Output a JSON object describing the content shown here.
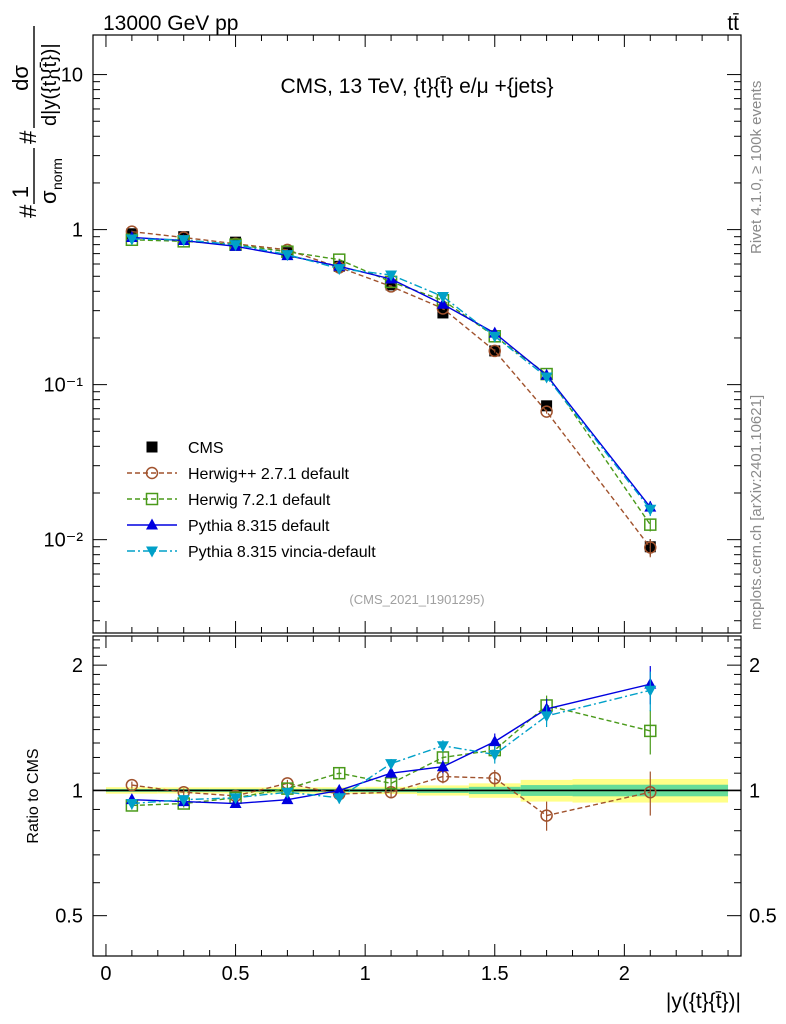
{
  "header": {
    "left": "13000 GeV pp",
    "right": "tt̄"
  },
  "side_labels": {
    "rivet": "Rivet 4.1.0, ≥ 100k events",
    "mcplots": "mcplots.cern.ch [arXiv:2401.10621]"
  },
  "colors": {
    "cms": "#000000",
    "herwig271": "#a0522d",
    "herwig721": "#4a9a1a",
    "pythia": "#0000e0",
    "vincia": "#00a0c8",
    "band_yellow": "#ffff88",
    "band_green": "#66dd99"
  },
  "chart_data": [
    {
      "type": "scatter",
      "panel": "main",
      "title": "CMS, 13 TeV, {t}{t̄} e/μ +{jets}",
      "ylabel": "#1/σ_norm #dσ/d|y({t}{t̄})|",
      "ylabel_parts": {
        "hash1": "#",
        "one": "1",
        "sigma": "σ",
        "norm": "norm",
        "hash2": "#",
        "num": "dσ",
        "den": "d|y({t}{t̄})|"
      },
      "yscale": "log",
      "ylim": [
        0.0025,
        18
      ],
      "xlim": [
        -0.05,
        2.45
      ],
      "y_ticklabels": [
        {
          "value": 10,
          "label": "10"
        },
        {
          "value": 1,
          "label": "1"
        },
        {
          "value": 0.1,
          "label": "10⁻¹"
        },
        {
          "value": 0.01,
          "label": "10⁻²"
        }
      ],
      "watermark": "(CMS_2021_I1901295)",
      "legend_position": "lower-left",
      "x": [
        0.1,
        0.3,
        0.5,
        0.7,
        0.9,
        1.1,
        1.3,
        1.5,
        1.7,
        2.1
      ],
      "series": [
        {
          "name": "CMS",
          "key": "cms",
          "marker": "square-filled",
          "line": "none",
          "values": [
            0.94,
            0.9,
            0.83,
            0.71,
            0.58,
            0.44,
            0.29,
            0.165,
            0.073,
            0.009
          ],
          "errors": [
            0.03,
            0.03,
            0.025,
            0.02,
            0.02,
            0.015,
            0.015,
            0.008,
            0.004,
            0.0011
          ]
        },
        {
          "name": "Herwig++ 2.7.1 default",
          "key": "herwig271",
          "marker": "circle-open",
          "line": "dashed",
          "values": [
            0.97,
            0.89,
            0.81,
            0.74,
            0.57,
            0.43,
            0.31,
            0.165,
            0.067,
            0.0089
          ],
          "errors": [
            0.015,
            0.013,
            0.012,
            0.011,
            0.009,
            0.008,
            0.006,
            0.004,
            0.002,
            0.0012
          ]
        },
        {
          "name": "Herwig 7.2.1 default",
          "key": "herwig721",
          "marker": "square-open",
          "line": "dashed",
          "values": [
            0.86,
            0.84,
            0.8,
            0.72,
            0.64,
            0.46,
            0.35,
            0.205,
            0.117,
            0.0125
          ],
          "errors": [
            0.013,
            0.012,
            0.011,
            0.01,
            0.009,
            0.008,
            0.006,
            0.004,
            0.003,
            0.0012
          ]
        },
        {
          "name": "Pythia 8.315 default",
          "key": "pythia",
          "marker": "triangle-up",
          "line": "solid",
          "values": [
            0.89,
            0.85,
            0.78,
            0.68,
            0.58,
            0.48,
            0.33,
            0.215,
            0.115,
            0.0162
          ],
          "errors": [
            0.013,
            0.012,
            0.011,
            0.01,
            0.009,
            0.008,
            0.006,
            0.004,
            0.003,
            0.0015
          ]
        },
        {
          "name": "Pythia 8.315 vincia-default",
          "key": "vincia",
          "marker": "triangle-down",
          "line": "dashdot",
          "values": [
            0.87,
            0.86,
            0.8,
            0.69,
            0.56,
            0.51,
            0.37,
            0.205,
            0.112,
            0.0157
          ],
          "errors": [
            0.013,
            0.012,
            0.011,
            0.01,
            0.009,
            0.008,
            0.006,
            0.004,
            0.003,
            0.0015
          ]
        }
      ]
    },
    {
      "type": "scatter",
      "panel": "ratio",
      "ylabel": "Ratio to CMS",
      "xlabel": "|y({t}{t̄})|",
      "yscale": "log",
      "ylim": [
        0.4,
        2.35
      ],
      "xlim": [
        -0.05,
        2.45
      ],
      "reference_line": 1,
      "x_ticklabels": [
        {
          "value": 0,
          "label": "0"
        },
        {
          "value": 0.5,
          "label": "0.5"
        },
        {
          "value": 1,
          "label": "1"
        },
        {
          "value": 1.5,
          "label": "1.5"
        },
        {
          "value": 2,
          "label": "2"
        }
      ],
      "y_ticklabels": [
        {
          "value": 2,
          "label": "2"
        },
        {
          "value": 1,
          "label": "1"
        },
        {
          "value": 0.5,
          "label": "0.5"
        }
      ],
      "uncertainty_band": {
        "edges": [
          0.0,
          0.2,
          0.4,
          0.6,
          0.8,
          1.0,
          1.2,
          1.4,
          1.6,
          1.8,
          2.4
        ],
        "yellow": [
          0.018,
          0.017,
          0.017,
          0.017,
          0.018,
          0.02,
          0.028,
          0.04,
          0.06,
          0.065
        ],
        "green": [
          0.008,
          0.008,
          0.008,
          0.008,
          0.009,
          0.01,
          0.014,
          0.02,
          0.03,
          0.032
        ]
      },
      "x": [
        0.1,
        0.3,
        0.5,
        0.7,
        0.9,
        1.1,
        1.3,
        1.5,
        1.7,
        2.1
      ],
      "series": [
        {
          "name": "Herwig++ 2.7.1 default",
          "key": "herwig271",
          "marker": "circle-open",
          "line": "dashed",
          "values": [
            1.03,
            0.99,
            0.97,
            1.04,
            0.98,
            0.99,
            1.08,
            1.07,
            0.87,
            0.99
          ],
          "errors": [
            0.02,
            0.02,
            0.02,
            0.02,
            0.02,
            0.03,
            0.04,
            0.05,
            0.07,
            0.12
          ]
        },
        {
          "name": "Herwig 7.2.1 default",
          "key": "herwig721",
          "marker": "square-open",
          "line": "dashed",
          "values": [
            0.92,
            0.93,
            0.96,
            1.01,
            1.1,
            1.04,
            1.2,
            1.25,
            1.6,
            1.39
          ],
          "errors": [
            0.02,
            0.02,
            0.02,
            0.02,
            0.03,
            0.03,
            0.04,
            0.06,
            0.09,
            0.17
          ]
        },
        {
          "name": "Pythia 8.315 default",
          "key": "pythia",
          "marker": "triangle-up",
          "line": "solid",
          "values": [
            0.95,
            0.94,
            0.93,
            0.95,
            1.0,
            1.1,
            1.14,
            1.31,
            1.57,
            1.8
          ],
          "errors": [
            0.02,
            0.02,
            0.02,
            0.02,
            0.03,
            0.03,
            0.04,
            0.06,
            0.09,
            0.19
          ]
        },
        {
          "name": "Pythia 8.315 vincia-default",
          "key": "vincia",
          "marker": "triangle-down",
          "line": "dashdot",
          "values": [
            0.93,
            0.95,
            0.96,
            0.99,
            0.96,
            1.16,
            1.28,
            1.22,
            1.51,
            1.74
          ],
          "errors": [
            0.02,
            0.02,
            0.02,
            0.02,
            0.03,
            0.03,
            0.04,
            0.06,
            0.09,
            0.19
          ]
        }
      ]
    }
  ]
}
